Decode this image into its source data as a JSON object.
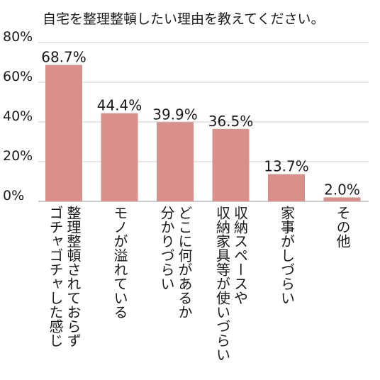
{
  "chart_data": {
    "type": "bar",
    "title": "自宅を整理整頓したい理由を教えてください。",
    "categories": [
      "整理整頓されておらず\nゴチャゴチャした感じ",
      "モノが溢れている",
      "どこに何があるか\n分かりづらい",
      "収納スペースや\n収納家具等が使いづらい",
      "家事がしづらい",
      "その他"
    ],
    "values": [
      68.7,
      44.4,
      39.9,
      36.5,
      13.7,
      2.0
    ],
    "value_labels": [
      "68.7%",
      "44.4%",
      "39.9%",
      "36.5%",
      "13.7%",
      "2.0%"
    ],
    "ytick_labels": [
      "0%",
      "20%",
      "40%",
      "60%",
      "80%"
    ],
    "yticks": [
      0,
      20,
      40,
      60,
      80
    ],
    "ylim": [
      0,
      80
    ],
    "grid": true,
    "bar_color": "#d9908a",
    "grid_color": "#cfcfcf"
  }
}
